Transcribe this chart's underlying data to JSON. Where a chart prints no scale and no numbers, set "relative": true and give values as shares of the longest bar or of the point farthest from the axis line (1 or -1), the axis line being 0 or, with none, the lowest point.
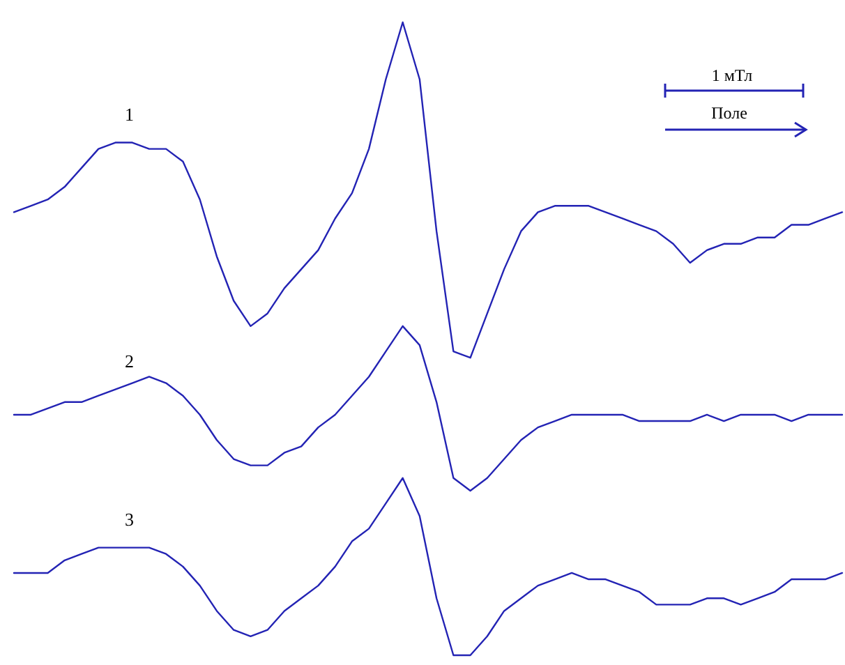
{
  "chart_data": {
    "type": "line",
    "relative": true,
    "line_style": "solid",
    "categories": [
      null,
      null,
      null,
      null,
      null,
      null,
      null,
      null,
      null,
      null,
      null,
      null,
      null,
      null,
      null,
      null,
      null,
      null,
      null,
      null,
      null,
      null,
      null,
      null,
      null,
      null,
      null,
      null,
      null,
      null,
      null,
      null,
      null,
      null,
      null,
      null,
      null,
      null,
      null,
      null,
      null,
      null,
      null,
      null,
      null,
      null,
      null,
      null,
      null,
      null
    ],
    "series": [
      {
        "name": "1",
        "color": "#2323b4",
        "values": [
          0.7,
          0.71,
          0.72,
          0.74,
          0.77,
          0.8,
          0.81,
          0.81,
          0.8,
          0.8,
          0.78,
          0.72,
          0.63,
          0.56,
          0.52,
          0.54,
          0.58,
          0.61,
          0.64,
          0.69,
          0.73,
          0.8,
          0.91,
          1.0,
          0.91,
          0.67,
          0.48,
          0.47,
          0.54,
          0.61,
          0.67,
          0.7,
          0.71,
          0.71,
          0.71,
          0.7,
          0.69,
          0.68,
          0.67,
          0.65,
          0.62,
          0.64,
          0.65,
          0.65,
          0.66,
          0.66,
          0.68,
          0.68,
          0.69,
          0.7
        ]
      },
      {
        "name": "2",
        "color": "#2323b4",
        "values": [
          0.38,
          0.38,
          0.39,
          0.4,
          0.4,
          0.41,
          0.42,
          0.43,
          0.44,
          0.43,
          0.41,
          0.38,
          0.34,
          0.31,
          0.3,
          0.3,
          0.32,
          0.33,
          0.36,
          0.38,
          0.41,
          0.44,
          0.48,
          0.52,
          0.49,
          0.4,
          0.28,
          0.26,
          0.28,
          0.31,
          0.34,
          0.36,
          0.37,
          0.38,
          0.38,
          0.38,
          0.38,
          0.37,
          0.37,
          0.37,
          0.37,
          0.38,
          0.37,
          0.38,
          0.38,
          0.38,
          0.37,
          0.38,
          0.38,
          0.38
        ]
      },
      {
        "name": "3",
        "color": "#2323b4",
        "values": [
          0.13,
          0.13,
          0.13,
          0.15,
          0.16,
          0.17,
          0.17,
          0.17,
          0.17,
          0.16,
          0.14,
          0.11,
          0.07,
          0.04,
          0.03,
          0.04,
          0.07,
          0.09,
          0.11,
          0.14,
          0.18,
          0.2,
          0.24,
          0.28,
          0.22,
          0.09,
          0,
          0,
          0.03,
          0.07,
          0.09,
          0.11,
          0.12,
          0.13,
          0.12,
          0.12,
          0.11,
          0.1,
          0.08,
          0.08,
          0.08,
          0.09,
          0.09,
          0.08,
          0.09,
          0.1,
          0.12,
          0.12,
          0.12,
          0.13
        ]
      }
    ],
    "annotations": [
      "1 мТл",
      "Поле"
    ]
  }
}
